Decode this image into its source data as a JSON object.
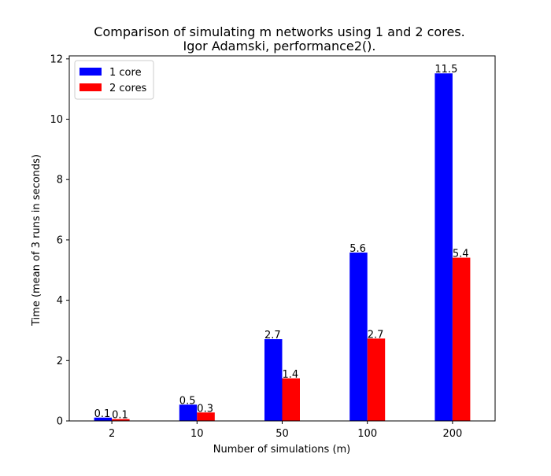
{
  "chart_data": {
    "type": "bar",
    "title": "Comparison of simulating m networks using 1 and 2 cores.",
    "subtitle": "Igor Adamski, performance2().",
    "xlabel": "Number of simulations (m)",
    "ylabel": "Time (mean of 3 runs in seconds)",
    "categories": [
      "2",
      "10",
      "50",
      "100",
      "200"
    ],
    "series": [
      {
        "name": "1 core",
        "color": "#0000ff",
        "values": [
          0.11,
          0.54,
          2.71,
          5.58,
          11.52
        ],
        "labels": [
          "0.1",
          "0.5",
          "2.7",
          "5.6",
          "11.5"
        ]
      },
      {
        "name": "2 cores",
        "color": "#ff0000",
        "values": [
          0.06,
          0.28,
          1.41,
          2.73,
          5.41
        ],
        "labels": [
          "0.1",
          "0.3",
          "1.4",
          "2.7",
          "5.4"
        ]
      }
    ],
    "ylim": [
      0,
      12.1
    ],
    "yticks": [
      "0",
      "2",
      "4",
      "6",
      "8",
      "10",
      "12"
    ],
    "legend_position": "top-left",
    "grid": false
  }
}
